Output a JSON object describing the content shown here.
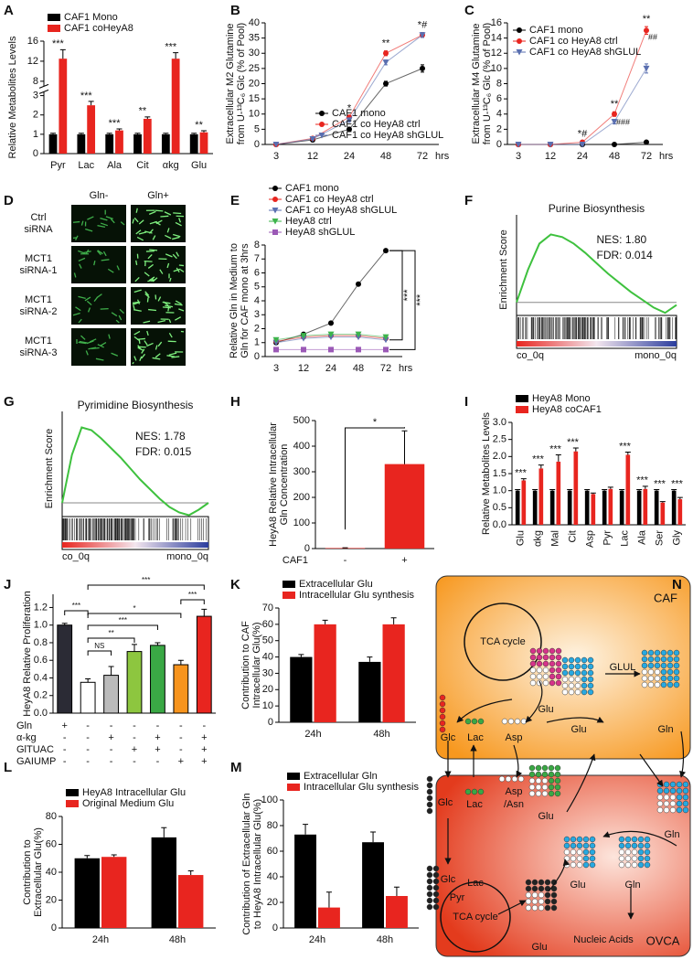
{
  "chart_data": [
    {
      "panel": "A",
      "type": "bar",
      "ylabel": [
        "Relative Metabolites Levels"
      ],
      "categories": [
        "Pyr",
        "Lac",
        "Ala",
        "Cit",
        "αkg",
        "Glu"
      ],
      "series": [
        {
          "name": "CAF1 Mono",
          "color": "#000000",
          "values": [
            1,
            1,
            1,
            1,
            1,
            1
          ],
          "errors": [
            0.05,
            0.05,
            0.05,
            0.05,
            0.05,
            0.05
          ]
        },
        {
          "name": "CAF1 coHeyA8",
          "color": "#e8251f",
          "values": [
            12.5,
            2.5,
            1.2,
            1.8,
            12.5,
            1.1
          ],
          "errors": [
            1.8,
            0.2,
            0.08,
            0.1,
            1.2,
            0.08
          ]
        }
      ],
      "significance": [
        "***",
        "***",
        "***",
        "**",
        "***",
        "**"
      ],
      "ylim": [
        0,
        16
      ],
      "ybreak": [
        3.2,
        7
      ],
      "yticks": [
        0,
        1,
        2,
        3,
        8,
        12,
        16
      ],
      "legend": "top"
    },
    {
      "panel": "B",
      "type": "line",
      "ylabel": [
        "Extracellular M2 Glutamine",
        "from U-¹³C₆ Glc (% of Pool)"
      ],
      "categories": [
        "3",
        "12",
        "24",
        "48",
        "72"
      ],
      "xlabel": "hrs",
      "series": [
        {
          "name": "CAF1 mono",
          "color": "#000000",
          "marker": "circle",
          "values": [
            0,
            1.5,
            5,
            20,
            25
          ],
          "errors": [
            0,
            0.2,
            0.3,
            0.8,
            1.2
          ]
        },
        {
          "name": "CAF1 co HeyA8 ctrl",
          "color": "#e8251f",
          "marker": "circle",
          "values": [
            0,
            2,
            9,
            30,
            36
          ],
          "errors": [
            0,
            0.2,
            0.5,
            0.8,
            0.8
          ]
        },
        {
          "name": "CAF1 co HeyA8 shGLUL",
          "color": "#5a6fb0",
          "marker": "triangle-down",
          "values": [
            0,
            1.8,
            8,
            27,
            36
          ],
          "errors": [
            0,
            0.2,
            0.5,
            0.8,
            0.8
          ]
        }
      ],
      "significance": [
        null,
        null,
        "*",
        "**",
        "*#"
      ],
      "ylim": [
        0,
        40
      ],
      "yticks": [
        0,
        5,
        10,
        15,
        20,
        25,
        30,
        35,
        40
      ],
      "legend": "lower right"
    },
    {
      "panel": "C",
      "type": "line",
      "ylabel": [
        "Extracellular M4 Glutamine",
        "from U-¹³C₆ Glc (% of Pool)"
      ],
      "categories": [
        "3",
        "12",
        "24",
        "48",
        "72"
      ],
      "xlabel": "hrs",
      "series": [
        {
          "name": "CAF1 mono",
          "color": "#000000",
          "marker": "circle",
          "values": [
            0,
            0,
            0,
            0,
            0.3
          ],
          "errors": [
            0,
            0,
            0,
            0,
            0.1
          ]
        },
        {
          "name": "CAF1 co HeyA8 ctrl",
          "color": "#e8251f",
          "marker": "circle",
          "values": [
            0,
            0,
            0.3,
            4,
            15
          ],
          "errors": [
            0,
            0,
            0.1,
            0.3,
            0.5
          ]
        },
        {
          "name": "CAF1 co HeyA8 shGLUL",
          "color": "#5a6fb0",
          "marker": "triangle-down",
          "values": [
            0,
            0,
            0,
            3,
            10
          ],
          "errors": [
            0,
            0,
            0.1,
            0.3,
            0.6
          ]
        }
      ],
      "significance": [
        null,
        null,
        "*#",
        "**",
        "**"
      ],
      "significance2": [
        null,
        null,
        null,
        "###",
        "##"
      ],
      "ylim": [
        0,
        16
      ],
      "yticks": [
        0,
        2,
        4,
        6,
        8,
        10,
        12,
        14,
        16
      ],
      "legend": "upper left"
    },
    {
      "panel": "E",
      "type": "line",
      "ylabel": [
        "Relative Gln in Medium to",
        "Gln for CAF mono at 3hrs"
      ],
      "categories": [
        "3",
        "12",
        "24",
        "48",
        "72"
      ],
      "xlabel": "hrs",
      "series": [
        {
          "name": "CAF1 mono",
          "color": "#000000",
          "marker": "circle",
          "values": [
            1,
            1.6,
            2.4,
            5.2,
            7.6
          ]
        },
        {
          "name": "CAF1 co HeyA8 ctrl",
          "color": "#e8251f",
          "marker": "circle",
          "values": [
            1.1,
            1.4,
            1.5,
            1.5,
            1.3
          ]
        },
        {
          "name": "CAF1 co HeyA8 shGLUL",
          "color": "#5a6fb0",
          "marker": "triangle-down",
          "values": [
            1,
            1.3,
            1.4,
            1.4,
            1.2
          ]
        },
        {
          "name": "HeyA8 ctrl",
          "color": "#3cb44b",
          "marker": "triangle-down",
          "values": [
            1.2,
            1.5,
            1.6,
            1.6,
            1.4
          ]
        },
        {
          "name": "HeyA8 shGLUL",
          "color": "#9b59b6",
          "marker": "square",
          "values": [
            0.5,
            0.5,
            0.5,
            0.5,
            0.5
          ]
        }
      ],
      "brackets": [
        "***",
        "***"
      ],
      "ylim": [
        0,
        8
      ],
      "yticks": [
        0,
        1,
        2,
        3,
        4,
        5,
        6,
        7,
        8
      ],
      "legend": "top"
    },
    {
      "panel": "F",
      "type": "gsea",
      "title": "Purine Biosynthesis",
      "ylabel": [
        "Enrichment Score"
      ],
      "stats": [
        "NES: 1.80",
        "FDR: 0.014"
      ],
      "values": [
        0,
        0.25,
        0.45,
        0.52,
        0.5,
        0.45,
        0.38,
        0.3,
        0.22,
        0.15,
        0.08,
        0.02,
        -0.04,
        -0.08,
        -0.02
      ],
      "ylim": [
        -0.1,
        0.6
      ],
      "tags": [
        "co_0q",
        "mono_0q"
      ],
      "color": "#3ec13e"
    },
    {
      "panel": "G",
      "type": "gsea",
      "title": "Pyrimidine Biosynthesis",
      "ylabel": [
        "Enrichment Score"
      ],
      "stats": [
        "NES: 1.78",
        "FDR: 0.015"
      ],
      "values": [
        0,
        0.35,
        0.55,
        0.53,
        0.47,
        0.4,
        0.33,
        0.25,
        0.17,
        0.1,
        0.03,
        -0.03,
        -0.07,
        -0.09,
        -0.05,
        0
      ],
      "ylim": [
        -0.1,
        0.6
      ],
      "tags": [
        "co_0q",
        "mono_0q"
      ],
      "color": "#3ec13e"
    },
    {
      "panel": "H",
      "type": "bar",
      "ylabel": [
        "HeyA8 Relative Intracellular",
        "Gln Concentration"
      ],
      "row_label": "CAF1",
      "categories": [
        "-",
        "+"
      ],
      "values": [
        2,
        330
      ],
      "errors": [
        1,
        130
      ],
      "color": "#e8251f",
      "ylim": [
        0,
        500
      ],
      "yticks": [
        0,
        100,
        200,
        300,
        400,
        500
      ],
      "brackets": [
        "*"
      ]
    },
    {
      "panel": "I",
      "type": "bar",
      "ylabel": [
        "Relative Metabolites Levels"
      ],
      "categories": [
        "Glu",
        "αkg",
        "Mal",
        "Cit",
        "Asp",
        "Pyr",
        "Lac",
        "Ala",
        "Ser",
        "Gly"
      ],
      "rotate_labels": true,
      "series": [
        {
          "name": "HeyA8 Mono",
          "color": "#000000",
          "values": [
            1,
            1,
            1,
            1,
            1,
            1,
            1,
            1,
            1,
            1
          ],
          "errors": [
            0.03,
            0.03,
            0.03,
            0.03,
            0.03,
            0.03,
            0.03,
            0.03,
            0.03,
            0.03
          ]
        },
        {
          "name": "HeyA8 coCAF1",
          "color": "#e8251f",
          "values": [
            1.3,
            1.65,
            1.85,
            2.15,
            0.9,
            1.05,
            2.05,
            1.05,
            0.65,
            0.75
          ],
          "errors": [
            0.05,
            0.1,
            0.2,
            0.1,
            0.03,
            0.05,
            0.08,
            0.08,
            0.03,
            0.05
          ]
        }
      ],
      "significance": [
        "***",
        "***",
        "***",
        "***",
        null,
        null,
        "***",
        "***",
        "***",
        "***"
      ],
      "ylim": [
        0,
        3
      ],
      "yticks": [
        {
          "value": 0,
          "label": "0.0"
        },
        {
          "value": 0.5,
          "label": "0.5"
        },
        {
          "value": 1,
          "label": "1.0"
        },
        {
          "value": 1.5,
          "label": "1.5"
        },
        {
          "value": 2,
          "label": "2.0"
        },
        {
          "value": 2.5,
          "label": "2.5"
        },
        {
          "value": 3,
          "label": "3.0"
        }
      ],
      "legend": "top"
    },
    {
      "panel": "J",
      "type": "bar",
      "ylabel": [
        "HeyA8 Relative Proliferation"
      ],
      "values": [
        1.0,
        0.35,
        0.43,
        0.7,
        0.77,
        0.55,
        1.1
      ],
      "errors": [
        0.02,
        0.04,
        0.1,
        0.08,
        0.03,
        0.05,
        0.08
      ],
      "colors": [
        "#2b2b35",
        "#ffffff",
        "#bbbbbb",
        "#8dc63f",
        "#3aa845",
        "#f7941d",
        "#e8251f"
      ],
      "ylim": [
        0,
        1.35
      ],
      "yticks": [
        {
          "value": 0,
          "label": "0.0"
        },
        {
          "value": 0.2,
          "label": "0.2"
        },
        {
          "value": 0.4,
          "label": "0.4"
        },
        {
          "value": 0.6,
          "label": "0.6"
        },
        {
          "value": 0.8,
          "label": "0.8"
        },
        {
          "value": 1,
          "label": "1.0"
        },
        {
          "value": 1.2,
          "label": "1.2"
        }
      ],
      "treatments": [
        {
          "name": "Gln",
          "marks": [
            "+",
            "-",
            "-",
            "-",
            "-",
            "-",
            "-"
          ]
        },
        {
          "name": "α-kg",
          "marks": [
            "-",
            "-",
            "+",
            "-",
            "+",
            "-",
            "+"
          ]
        },
        {
          "name": "GlTUAC",
          "marks": [
            "-",
            "-",
            "-",
            "+",
            "+",
            "-",
            "+"
          ]
        },
        {
          "name": "GAIUMP",
          "marks": [
            "-",
            "-",
            "-",
            "-",
            "-",
            "+",
            "+"
          ]
        }
      ],
      "brackets": [
        "***",
        "NS",
        "**",
        "***",
        "*",
        "***",
        "***"
      ]
    },
    {
      "panel": "K",
      "type": "bar",
      "ylabel": [
        "Contribution to CAF",
        "Intracellular Glu(%)"
      ],
      "categories": [
        "24h",
        "48h"
      ],
      "series": [
        {
          "name": "Extracellular Glu",
          "color": "#000000",
          "values": [
            40,
            37
          ],
          "errors": [
            1.5,
            3
          ]
        },
        {
          "name": "Intracellular Glu synthesis",
          "color": "#e8251f",
          "values": [
            60,
            60
          ],
          "errors": [
            2.5,
            4
          ]
        }
      ],
      "ylim": [
        0,
        70
      ],
      "yticks": [
        0,
        10,
        20,
        30,
        40,
        50,
        60,
        70
      ],
      "legend": "top"
    },
    {
      "panel": "L",
      "type": "bar",
      "ylabel": [
        "Contribution to",
        "Extracellular Glu(%)"
      ],
      "categories": [
        "24h",
        "48h"
      ],
      "series": [
        {
          "name": "HeyA8 Intracellular Glu",
          "color": "#000000",
          "values": [
            50,
            65
          ],
          "errors": [
            2,
            7
          ]
        },
        {
          "name": "Original Medium Glu",
          "color": "#e8251f",
          "values": [
            51,
            38
          ],
          "errors": [
            1.5,
            3
          ]
        }
      ],
      "ylim": [
        0,
        80
      ],
      "yticks": [
        0,
        20,
        40,
        60,
        80
      ],
      "legend": "top"
    },
    {
      "panel": "M",
      "type": "bar",
      "ylabel": [
        "Contribution of Extracellular Gln",
        "to HeyA8 Intracellular Glu(%)"
      ],
      "categories": [
        "24h",
        "48h"
      ],
      "series": [
        {
          "name": "Extracellular Gln",
          "color": "#000000",
          "values": [
            73,
            67
          ],
          "errors": [
            8,
            8
          ]
        },
        {
          "name": "Intracellular Glu synthesis",
          "color": "#e8251f",
          "values": [
            16,
            25
          ],
          "errors": [
            12,
            7
          ]
        }
      ],
      "ylim": [
        0,
        100
      ],
      "yticks": [
        0,
        20,
        40,
        60,
        80,
        100
      ],
      "legend": "top"
    }
  ],
  "images": {
    "panel": "D",
    "columns": [
      "Gln-",
      "Gln+"
    ],
    "rows": [
      [
        "Ctrl",
        "siRNA"
      ],
      [
        "MCT1",
        "siRNA-1"
      ],
      [
        "MCT1",
        "siRNA-2"
      ],
      [
        "MCT1",
        "siRNA-3"
      ]
    ]
  },
  "diagram": {
    "panel": "N",
    "labels": [
      "CAF",
      "TCA cycle",
      "Glu",
      "GLUL",
      "Glu",
      "Gln",
      "Glc",
      "Lac",
      "Asp",
      "Glc",
      "Lac",
      "Asp",
      "/Asn",
      "Glu",
      "Gln",
      "Glc",
      "Lac",
      "Pyr",
      "TCA cycle",
      "Glu",
      "Glu",
      "Gln",
      "Nucleic Acids",
      "OVCA"
    ]
  }
}
